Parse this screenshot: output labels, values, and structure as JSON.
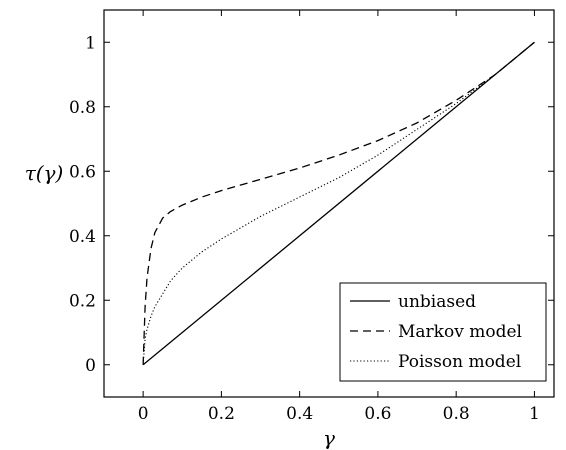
{
  "chart_data": {
    "type": "line",
    "title": "",
    "xlabel": "γ",
    "ylabel": "τ(γ)",
    "xlim": [
      -0.1,
      1.05
    ],
    "ylim": [
      -0.1,
      1.1
    ],
    "x_ticks": [
      0,
      0.2,
      0.4,
      0.6,
      0.8,
      1
    ],
    "y_ticks": [
      0,
      0.2,
      0.4,
      0.6,
      0.8,
      1
    ],
    "grid": false,
    "legend_position": "bottom-right",
    "series": [
      {
        "name": "unbiased",
        "style": "solid",
        "color": "#000000",
        "x": [
          0,
          1
        ],
        "y": [
          0,
          1
        ]
      },
      {
        "name": "Markov model",
        "style": "dashed",
        "color": "#000000",
        "x": [
          0,
          0.005,
          0.01,
          0.02,
          0.03,
          0.05,
          0.07,
          0.1,
          0.15,
          0.2,
          0.3,
          0.4,
          0.5,
          0.6,
          0.7,
          0.8,
          0.9,
          1
        ],
        "y": [
          0,
          0.18,
          0.27,
          0.36,
          0.41,
          0.455,
          0.475,
          0.495,
          0.52,
          0.54,
          0.575,
          0.61,
          0.65,
          0.695,
          0.75,
          0.82,
          0.9,
          1
        ]
      },
      {
        "name": "Poisson model",
        "style": "dotted",
        "color": "#000000",
        "x": [
          0,
          0.005,
          0.01,
          0.02,
          0.03,
          0.05,
          0.07,
          0.1,
          0.15,
          0.2,
          0.3,
          0.4,
          0.5,
          0.6,
          0.7,
          0.8,
          0.9,
          1
        ],
        "y": [
          0,
          0.08,
          0.11,
          0.15,
          0.18,
          0.22,
          0.26,
          0.3,
          0.35,
          0.39,
          0.46,
          0.52,
          0.58,
          0.65,
          0.73,
          0.81,
          0.9,
          1
        ]
      }
    ]
  }
}
